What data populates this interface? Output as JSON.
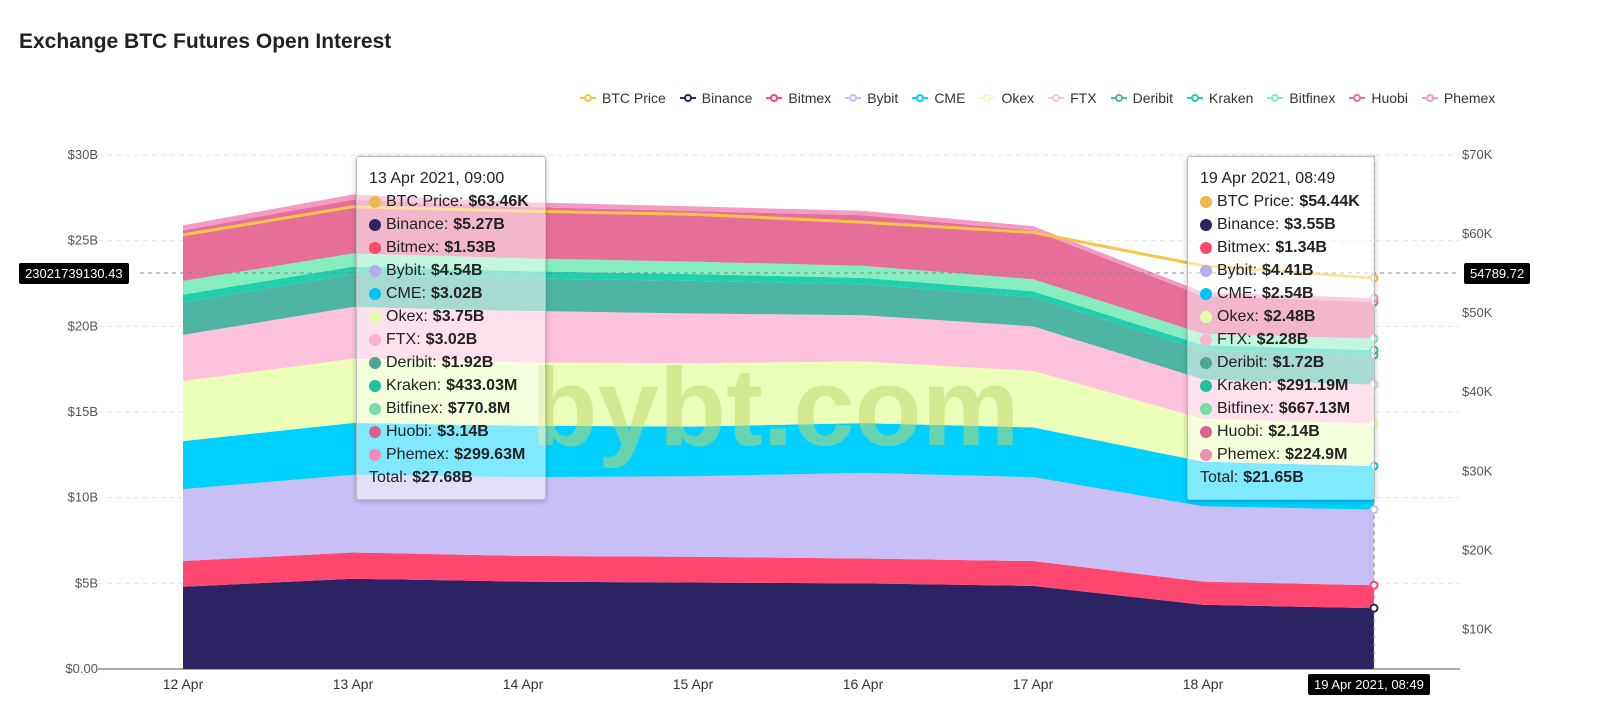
{
  "title": "Exchange BTC Futures Open Interest",
  "watermark": "bybt.com",
  "chart_data": {
    "type": "area",
    "stacked": true,
    "categories": [
      "12 Apr",
      "13 Apr",
      "14 Apr",
      "15 Apr",
      "16 Apr",
      "17 Apr",
      "18 Apr",
      "19 Apr 2021, 08:49"
    ],
    "y_left": {
      "ylim": [
        0,
        30
      ],
      "ticks": [
        "$0.00",
        "$5B",
        "$10B",
        "$15B",
        "$20B",
        "$25B",
        "$30B"
      ]
    },
    "y_right": {
      "ylim": [
        5,
        70
      ],
      "ticks": [
        "$10K",
        "$20K",
        "$30K",
        "$40K",
        "$50K",
        "$60K",
        "$70K"
      ]
    },
    "series": [
      {
        "name": "Binance",
        "color": "#2c2462",
        "values": [
          4.8,
          5.27,
          5.1,
          5.05,
          5.0,
          4.85,
          3.75,
          3.55
        ]
      },
      {
        "name": "Bitmex",
        "color": "#ff476f",
        "values": [
          1.5,
          1.53,
          1.5,
          1.5,
          1.45,
          1.45,
          1.35,
          1.34
        ]
      },
      {
        "name": "Bybit",
        "color": "#c7bff5",
        "values": [
          4.2,
          4.54,
          4.6,
          4.7,
          5.0,
          4.9,
          4.4,
          4.41
        ]
      },
      {
        "name": "CME",
        "color": "#00d0ff",
        "values": [
          2.8,
          3.02,
          3.0,
          2.9,
          2.9,
          2.9,
          2.6,
          2.54
        ]
      },
      {
        "name": "Okex",
        "color": "#ebffb8",
        "values": [
          3.5,
          3.75,
          3.7,
          3.7,
          3.6,
          3.3,
          2.5,
          2.48
        ]
      },
      {
        "name": "FTX",
        "color": "#ffc2dc",
        "values": [
          2.7,
          3.02,
          3.0,
          2.9,
          2.7,
          2.6,
          2.3,
          2.28
        ]
      },
      {
        "name": "Deribit",
        "color": "#4fb5a3",
        "values": [
          1.9,
          1.92,
          1.9,
          1.9,
          1.8,
          1.7,
          1.7,
          1.72
        ]
      },
      {
        "name": "Kraken",
        "color": "#1fcfae",
        "values": [
          0.45,
          0.433,
          0.42,
          0.4,
          0.38,
          0.35,
          0.3,
          0.291
        ]
      },
      {
        "name": "Bitfinex",
        "color": "#86edbe",
        "values": [
          0.8,
          0.771,
          0.75,
          0.73,
          0.7,
          0.7,
          0.67,
          0.667
        ]
      },
      {
        "name": "Huobi",
        "color": "#e56f98",
        "values": [
          2.95,
          3.14,
          3.0,
          2.95,
          2.95,
          2.85,
          2.2,
          2.14
        ]
      },
      {
        "name": "Phemex",
        "color": "#f49ac4",
        "values": [
          0.3,
          0.3,
          0.28,
          0.27,
          0.26,
          0.25,
          0.23,
          0.225
        ]
      }
    ],
    "btc_price": {
      "name": "BTC Price",
      "color": "#f7c548",
      "values": [
        59.9,
        63.46,
        62.9,
        62.5,
        61.5,
        60.2,
        56.0,
        54.44
      ]
    },
    "legend": [
      "BTC Price",
      "Binance",
      "Bitmex",
      "Bybit",
      "CME",
      "Okex",
      "FTX",
      "Deribit",
      "Kraken",
      "Bitfinex",
      "Huobi",
      "Phemex"
    ],
    "legend_placement": "top-right",
    "grid": true,
    "crosshair": {
      "y_left_label": "23021739130.43",
      "y_right_label": "54789.72",
      "x_label": "19 Apr 2021, 08:49"
    }
  },
  "tooltips": [
    {
      "title": "13 Apr 2021, 09:00",
      "rows": [
        {
          "label": "BTC Price:",
          "value": "$63.46K",
          "color": "#f0b84a"
        },
        {
          "label": "Binance:",
          "value": "$5.27B",
          "color": "#2c2462"
        },
        {
          "label": "Bitmex:",
          "value": "$1.53B",
          "color": "#ff476f"
        },
        {
          "label": "Bybit:",
          "value": "$4.54B",
          "color": "#b5acee"
        },
        {
          "label": "CME:",
          "value": "$3.02B",
          "color": "#00c2f5"
        },
        {
          "label": "Okex:",
          "value": "$3.75B",
          "color": "#e3ffa8"
        },
        {
          "label": "FTX:",
          "value": "$3.02B",
          "color": "#f7b5cf"
        },
        {
          "label": "Deribit:",
          "value": "$1.92B",
          "color": "#4fa593"
        },
        {
          "label": "Kraken:",
          "value": "$433.03M",
          "color": "#1fbfa0"
        },
        {
          "label": "Bitfinex:",
          "value": "$770.8M",
          "color": "#76dda8"
        },
        {
          "label": "Huobi:",
          "value": "$3.14B",
          "color": "#d9628b"
        },
        {
          "label": "Phemex:",
          "value": "$299.63M",
          "color": "#f08cb5"
        }
      ],
      "total_label": "Total:",
      "total_value": "$27.68B"
    },
    {
      "title": "19 Apr 2021, 08:49",
      "rows": [
        {
          "label": "BTC Price:",
          "value": "$54.44K",
          "color": "#f0b84a"
        },
        {
          "label": "Binance:",
          "value": "$3.55B",
          "color": "#2c2462"
        },
        {
          "label": "Bitmex:",
          "value": "$1.34B",
          "color": "#ff476f"
        },
        {
          "label": "Bybit:",
          "value": "$4.41B",
          "color": "#b5acee"
        },
        {
          "label": "CME:",
          "value": "$2.54B",
          "color": "#00c2f5"
        },
        {
          "label": "Okex:",
          "value": "$2.48B",
          "color": "#e3ffa8"
        },
        {
          "label": "FTX:",
          "value": "$2.28B",
          "color": "#f7b5cf"
        },
        {
          "label": "Deribit:",
          "value": "$1.72B",
          "color": "#4fa593"
        },
        {
          "label": "Kraken:",
          "value": "$291.19M",
          "color": "#1fbfa0"
        },
        {
          "label": "Bitfinex:",
          "value": "$667.13M",
          "color": "#76dda8"
        },
        {
          "label": "Huobi:",
          "value": "$2.14B",
          "color": "#d9628b"
        },
        {
          "label": "Phemex:",
          "value": "$224.9M",
          "color": "#f08cb5"
        }
      ],
      "total_label": "Total:",
      "total_value": "$21.65B"
    }
  ]
}
